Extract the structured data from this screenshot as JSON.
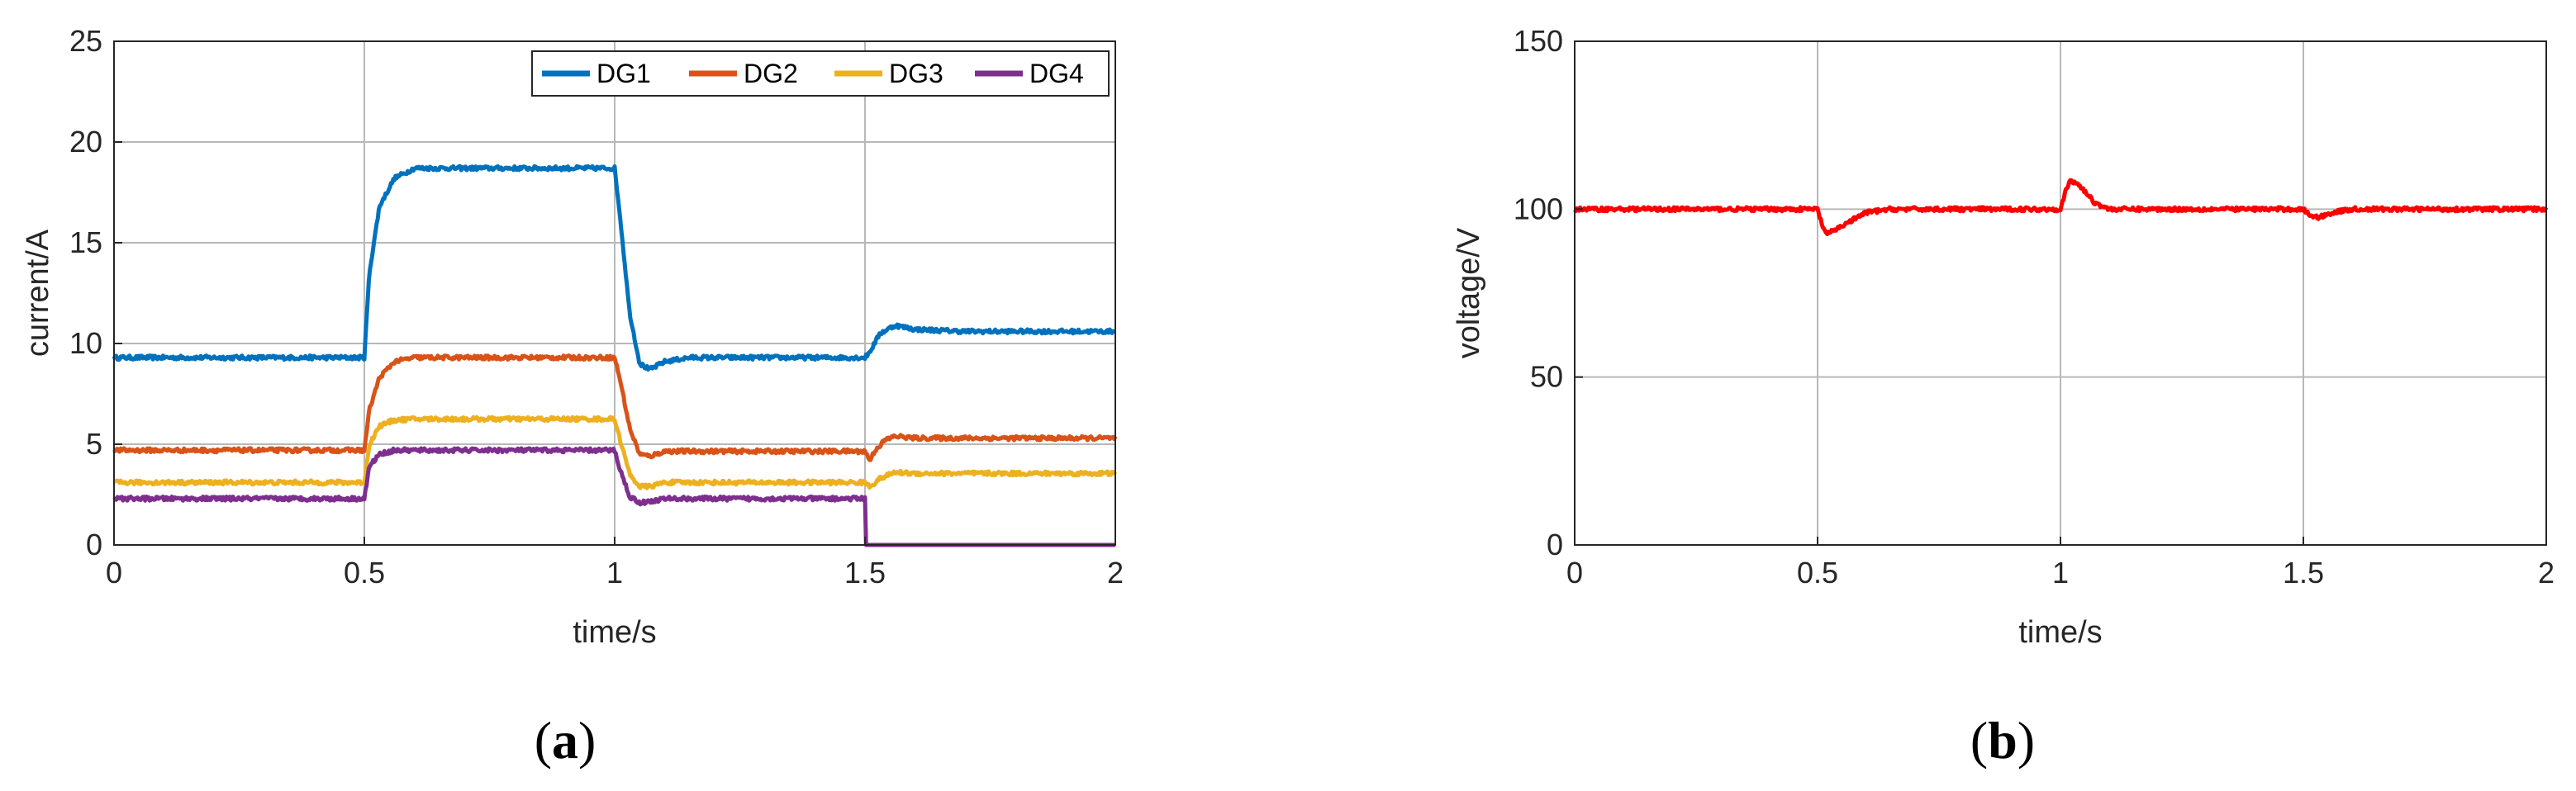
{
  "chart_data": [
    {
      "type": "line",
      "panel": "a",
      "caption_letter": "a",
      "xlabel": "time/s",
      "ylabel": "current/A",
      "xlim": [
        0,
        2
      ],
      "ylim": [
        0,
        25
      ],
      "xticks": [
        "0",
        "0.5",
        "1",
        "1.5",
        "2"
      ],
      "yticks": [
        "0",
        "5",
        "10",
        "15",
        "20",
        "25"
      ],
      "grid": true,
      "legend_position": "top-right",
      "series": [
        {
          "name": "DG1",
          "color": "#0072BD",
          "x": [
            0,
            0.5,
            0.51,
            0.53,
            0.56,
            0.6,
            1.0,
            1.01,
            1.03,
            1.05,
            1.07,
            1.1,
            1.15,
            1.5,
            1.51,
            1.53,
            1.56,
            1.6,
            1.7,
            2.0
          ],
          "y": [
            9.3,
            9.3,
            13.5,
            16.8,
            18.2,
            18.7,
            18.7,
            16.5,
            11.5,
            9.0,
            8.7,
            9.1,
            9.3,
            9.3,
            9.6,
            10.5,
            10.9,
            10.7,
            10.6,
            10.6
          ]
        },
        {
          "name": "DG2",
          "color": "#D95319",
          "x": [
            0,
            0.5,
            0.51,
            0.53,
            0.56,
            0.6,
            1.0,
            1.01,
            1.03,
            1.05,
            1.07,
            1.1,
            1.5,
            1.51,
            1.52,
            1.54,
            1.56,
            1.6,
            2.0
          ],
          "y": [
            4.7,
            4.7,
            6.7,
            8.3,
            9.1,
            9.3,
            9.3,
            8.3,
            5.8,
            4.5,
            4.4,
            4.65,
            4.65,
            4.2,
            4.7,
            5.2,
            5.4,
            5.3,
            5.3
          ]
        },
        {
          "name": "DG3",
          "color": "#EDB120",
          "x": [
            0,
            0.5,
            0.51,
            0.53,
            0.56,
            0.6,
            1.0,
            1.01,
            1.03,
            1.05,
            1.07,
            1.1,
            1.5,
            1.51,
            1.53,
            1.56,
            1.6,
            2.0
          ],
          "y": [
            3.1,
            3.1,
            5.0,
            5.9,
            6.2,
            6.25,
            6.25,
            5.3,
            3.5,
            2.9,
            2.9,
            3.1,
            3.1,
            2.9,
            3.3,
            3.6,
            3.55,
            3.55
          ]
        },
        {
          "name": "DG4",
          "color": "#7E2F8E",
          "x": [
            0,
            0.5,
            0.51,
            0.53,
            0.56,
            0.6,
            1.0,
            1.01,
            1.03,
            1.05,
            1.07,
            1.1,
            1.5,
            1.501,
            2.0
          ],
          "y": [
            2.3,
            2.3,
            3.9,
            4.5,
            4.7,
            4.7,
            4.7,
            3.8,
            2.4,
            2.1,
            2.15,
            2.3,
            2.3,
            0.0,
            0.0
          ]
        }
      ]
    },
    {
      "type": "line",
      "panel": "b",
      "caption_letter": "b",
      "xlabel": "time/s",
      "ylabel": "voltage/V",
      "xlim": [
        0,
        2
      ],
      "ylim": [
        0,
        150
      ],
      "xticks": [
        "0",
        "0.5",
        "1",
        "1.5",
        "2"
      ],
      "yticks": [
        "0",
        "50",
        "100",
        "150"
      ],
      "grid": true,
      "series": [
        {
          "color": "#FF0000",
          "x": [
            0,
            0.5,
            0.51,
            0.52,
            0.55,
            0.6,
            0.65,
            1.0,
            1.01,
            1.02,
            1.04,
            1.07,
            1.1,
            1.15,
            1.5,
            1.51,
            1.53,
            1.56,
            1.6,
            2.0
          ],
          "y": [
            100,
            100,
            95,
            92.5,
            95,
            99,
            100,
            100,
            105,
            108.5,
            107,
            102,
            100,
            100,
            100,
            98.5,
            97.5,
            99,
            100,
            100
          ]
        }
      ]
    }
  ],
  "captions": {
    "a_open": "(",
    "a_letter": "a",
    "a_close": ")",
    "b_open": "(",
    "b_letter": "b",
    "b_close": ")"
  }
}
